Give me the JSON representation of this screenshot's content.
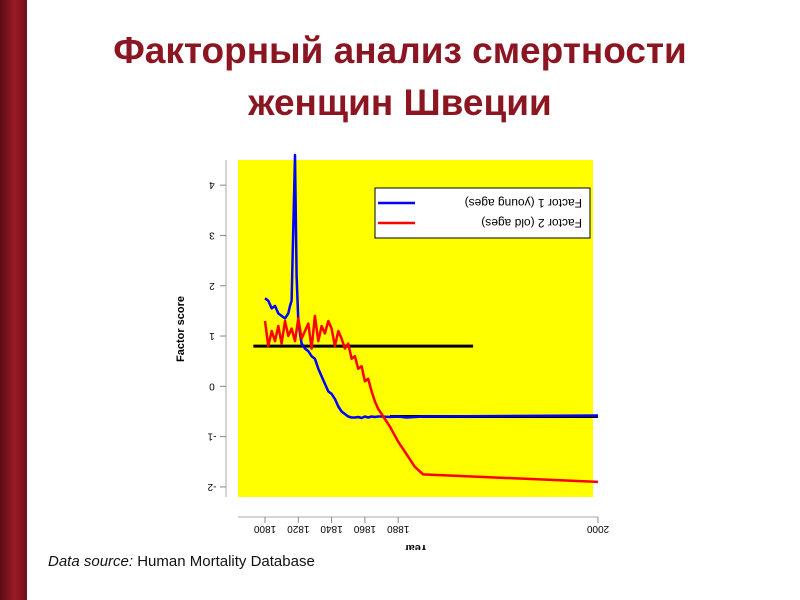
{
  "slide": {
    "title_line1": "Факторный анализ смертности",
    "title_line2": "женщин Швеции",
    "source_label": "Data source:",
    "source_text": " Human Mortality Database",
    "accent_color": "#8b1621"
  },
  "chart_data": {
    "type": "line",
    "orientation": "upside-down (rotated 180°)",
    "plot_background": "#ffff00",
    "xlabel": "Year",
    "ylabel": "Factor score",
    "xlim": [
      1800,
      2000
    ],
    "ylim": [
      -2.2,
      4.5
    ],
    "x_ticks": [
      "1800",
      "1820",
      "1840",
      "1860",
      "1880",
      "2000"
    ],
    "y_ticks": [
      "-2",
      "-1",
      "0",
      "1",
      "2",
      "3",
      "4"
    ],
    "legend_position": "top-right",
    "series": [
      {
        "name": "Factor 1 (young ages)",
        "color": "#0000ff",
        "x": [
          1800,
          1802,
          1804,
          1806,
          1808,
          1810,
          1812,
          1814,
          1815,
          1816,
          1818,
          1819,
          1820,
          1821,
          1822,
          1823,
          1824,
          1826,
          1828,
          1830,
          1832,
          1834,
          1836,
          1838,
          1840,
          1842,
          1844,
          1846,
          1848,
          1850,
          1852,
          1854,
          1856,
          1858,
          1860,
          1862,
          1864,
          1866,
          1868,
          1870,
          1875,
          1880,
          1885,
          1890,
          1895,
          2000
        ],
        "y": [
          1.75,
          1.7,
          1.55,
          1.6,
          1.45,
          1.4,
          1.35,
          1.45,
          1.6,
          1.7,
          4.6,
          2.2,
          1.3,
          1.05,
          0.85,
          0.8,
          0.75,
          0.7,
          0.6,
          0.55,
          0.35,
          0.2,
          0.05,
          -0.1,
          -0.15,
          -0.25,
          -0.4,
          -0.5,
          -0.55,
          -0.6,
          -0.62,
          -0.62,
          -0.61,
          -0.63,
          -0.6,
          -0.62,
          -0.6,
          -0.61,
          -0.6,
          -0.6,
          -0.61,
          -0.6,
          -0.62,
          -0.61,
          -0.6,
          -0.58
        ]
      },
      {
        "name": "Factor 2 (old ages)",
        "color": "#ff0000",
        "x": [
          1800,
          1802,
          1804,
          1806,
          1808,
          1810,
          1812,
          1814,
          1816,
          1818,
          1820,
          1822,
          1824,
          1826,
          1828,
          1830,
          1832,
          1834,
          1836,
          1838,
          1840,
          1842,
          1844,
          1846,
          1848,
          1850,
          1852,
          1854,
          1856,
          1858,
          1860,
          1862,
          1864,
          1866,
          1868,
          1870,
          1875,
          1880,
          1885,
          1890,
          1895,
          2000
        ],
        "y": [
          1.3,
          0.8,
          1.1,
          0.9,
          1.2,
          0.85,
          1.3,
          1.0,
          1.15,
          0.9,
          1.35,
          0.95,
          1.1,
          1.25,
          0.75,
          1.4,
          0.9,
          1.2,
          1.05,
          1.3,
          1.15,
          0.8,
          1.1,
          0.95,
          0.75,
          0.85,
          0.55,
          0.6,
          0.35,
          0.4,
          0.1,
          0.15,
          -0.1,
          -0.3,
          -0.45,
          -0.55,
          -0.8,
          -1.1,
          -1.35,
          -1.6,
          -1.75,
          -1.9
        ]
      }
    ],
    "reference_lines": [
      {
        "color": "#000000",
        "y": 0.8,
        "x_range": [
          1793,
          1925
        ]
      },
      {
        "color": "#000000",
        "y": -0.6,
        "x_range": [
          1875,
          2000
        ]
      }
    ]
  }
}
